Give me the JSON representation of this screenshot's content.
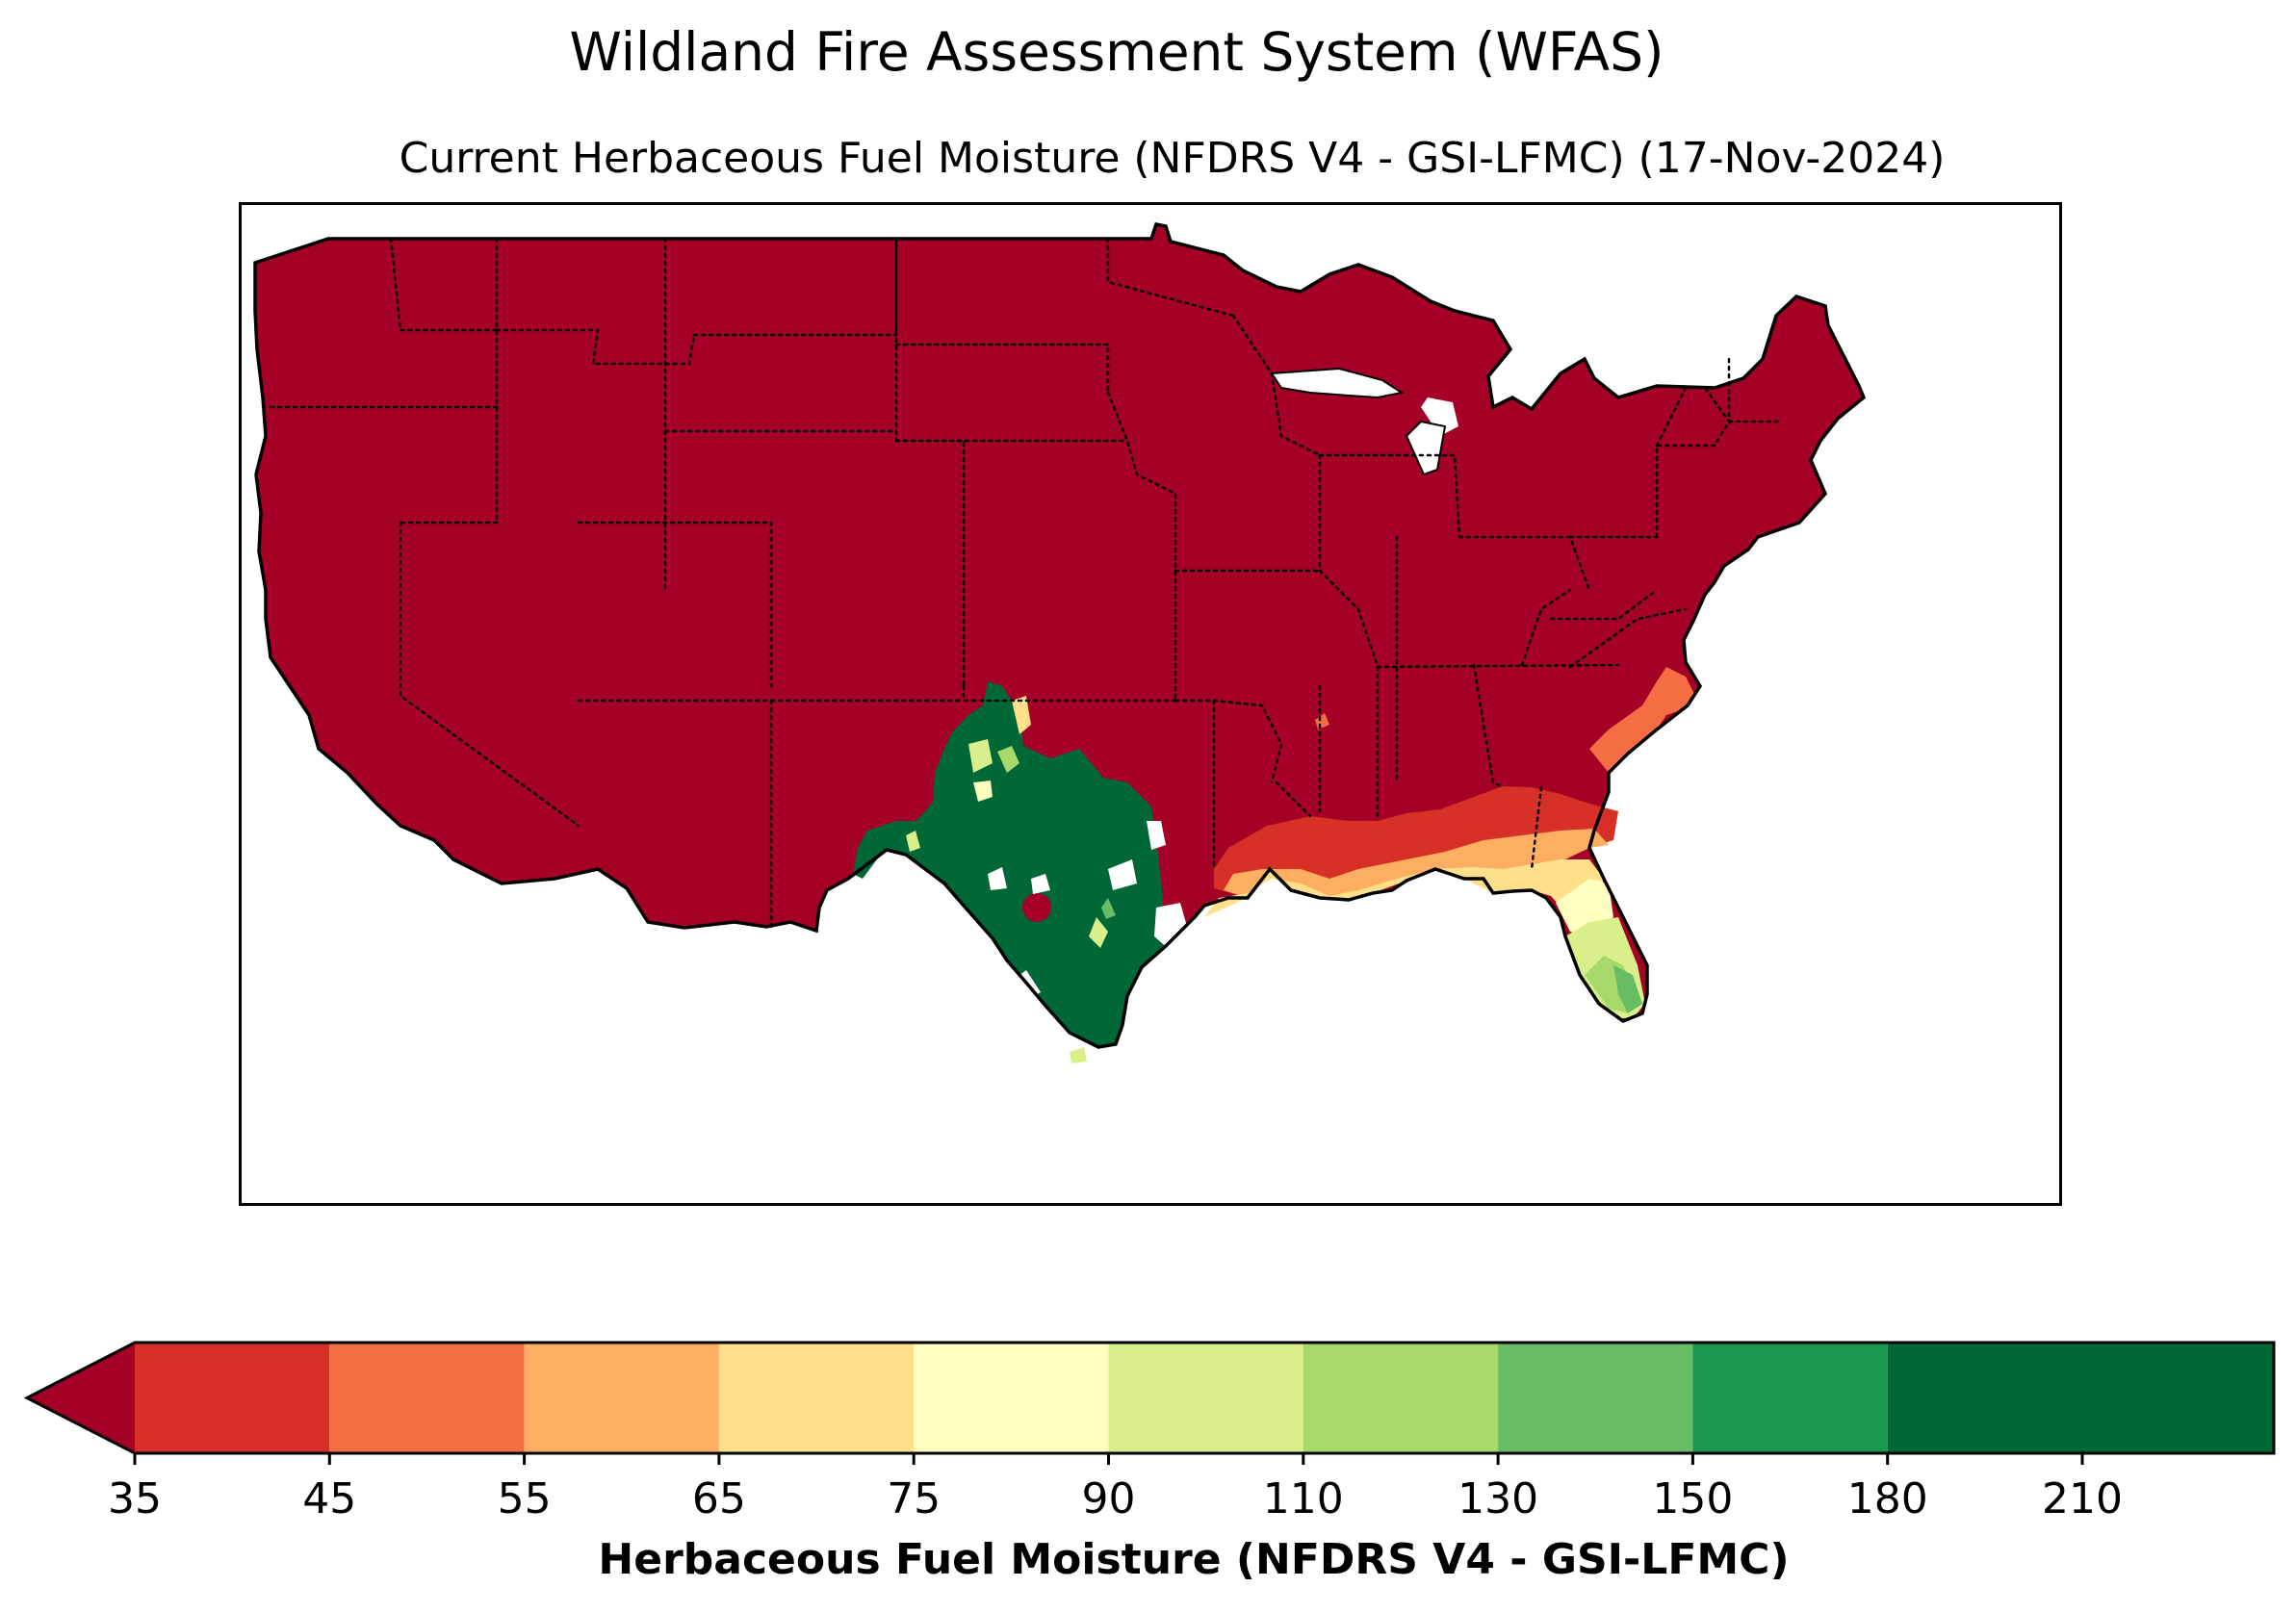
{
  "title": "Wildland Fire Assessment System (WFAS)",
  "subtitle": "Current Herbaceous Fuel Moisture (NFDRS V4 - GSI-LFMC) (17-Nov-2024)",
  "map": {
    "region": "Contiguous United States",
    "dominant_class": "<35",
    "colors": {
      "lt35": "#a50026",
      "c35_45": "#d73027",
      "c45_55": "#f46d43",
      "c55_65": "#fdae61",
      "c65_75": "#fee08b",
      "c75_90": "#ffffbf",
      "c90_110": "#d9ef8b",
      "c110_130": "#a6d96a",
      "c130_150": "#66bd63",
      "c150_180": "#1a9850",
      "c180_210": "#006837",
      "nodata": "#ffffff"
    }
  },
  "colorbar": {
    "label": "Herbaceous Fuel Moisture (NFDRS V4 - GSI-LFMC)",
    "extend": "min",
    "under_color": "#a50026",
    "levels": [
      "35",
      "45",
      "55",
      "65",
      "75",
      "90",
      "110",
      "130",
      "150",
      "180",
      "210"
    ],
    "bins": [
      {
        "from": "35",
        "to": "45",
        "color": "#d73027"
      },
      {
        "from": "45",
        "to": "55",
        "color": "#f46d43"
      },
      {
        "from": "55",
        "to": "65",
        "color": "#fdae61"
      },
      {
        "from": "65",
        "to": "75",
        "color": "#fee08b"
      },
      {
        "from": "75",
        "to": "90",
        "color": "#ffffbf"
      },
      {
        "from": "90",
        "to": "110",
        "color": "#d9ef8b"
      },
      {
        "from": "110",
        "to": "130",
        "color": "#a6d96a"
      },
      {
        "from": "130",
        "to": "150",
        "color": "#66bd63"
      },
      {
        "from": "150",
        "to": "180",
        "color": "#1a9850"
      },
      {
        "from": "180",
        "to": "210",
        "color": "#006837"
      },
      {
        "from": "210",
        "to": "",
        "color": "#006837"
      }
    ]
  }
}
